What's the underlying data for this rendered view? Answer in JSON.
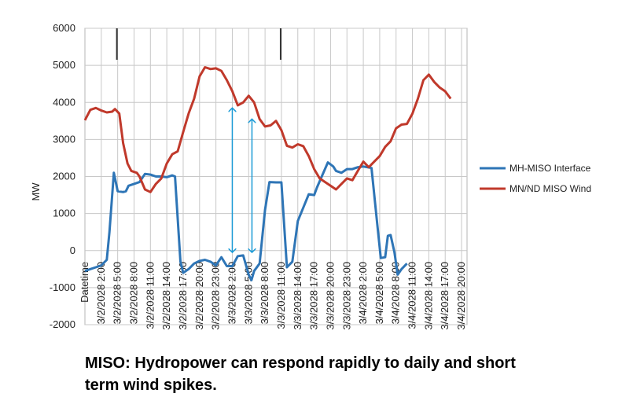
{
  "caption": "MISO: Hydropower can respond rapidly to daily and short term wind spikes.",
  "chart_data": {
    "type": "line",
    "title": "",
    "xlabel": "",
    "ylabel": "MW",
    "ylim": [
      -2000,
      6000
    ],
    "yticks": [
      "6000",
      "5000",
      "4000",
      "3000",
      "2000",
      "1000",
      "0",
      "-1000",
      "-2000"
    ],
    "grid": true,
    "legend": "right",
    "x_tick_labels": [
      "Datetime",
      "3/2/2028 2:00",
      "3/2/2028 5:00",
      "3/2/2028 8:00",
      "3/2/2028 11:00",
      "3/2/2028 14:00",
      "3/2/2028 17:00",
      "3/2/2028 20:00",
      "3/2/2028 23:00",
      "3/3/2028 2:00",
      "3/3/2028 5:00",
      "3/3/2028 8:00",
      "3/3/2028 11:00",
      "3/3/2028 14:00",
      "3/3/2028 17:00",
      "3/3/2028 20:00",
      "3/3/2028 23:00",
      "3/4/2028 2:00",
      "3/4/2028 5:00",
      "3/4/2028 8:00",
      "3/4/2028 11:00",
      "3/4/2028 14:00",
      "3/4/2028 17:00",
      "3/4/2028 20:00"
    ],
    "x_hours": [
      0,
      3,
      6,
      9,
      12,
      15,
      18,
      21,
      24,
      27,
      30,
      33,
      36,
      39,
      42,
      45,
      48,
      51,
      54,
      57,
      60,
      63,
      66,
      69
    ],
    "x_range_hours": [
      0,
      70
    ],
    "series": [
      {
        "name": "MH-MISO Interface",
        "color": "#2e75b6",
        "points": [
          [
            0,
            -550
          ],
          [
            1,
            -500
          ],
          [
            2,
            -450
          ],
          [
            3,
            -400
          ],
          [
            4,
            -250
          ],
          [
            4.5,
            500
          ],
          [
            5.3,
            2100
          ],
          [
            6,
            1600
          ],
          [
            7,
            1580
          ],
          [
            7.5,
            1600
          ],
          [
            8,
            1750
          ],
          [
            9,
            1800
          ],
          [
            10,
            1850
          ],
          [
            11,
            2070
          ],
          [
            12,
            2050
          ],
          [
            13,
            2000
          ],
          [
            14,
            2000
          ],
          [
            15,
            1980
          ],
          [
            16,
            2030
          ],
          [
            16.5,
            2000
          ],
          [
            17.5,
            -300
          ],
          [
            18,
            -600
          ],
          [
            19,
            -500
          ],
          [
            20,
            -350
          ],
          [
            21,
            -280
          ],
          [
            22,
            -250
          ],
          [
            23,
            -300
          ],
          [
            24,
            -400
          ],
          [
            25,
            -180
          ],
          [
            26,
            -420
          ],
          [
            27,
            -420
          ],
          [
            28,
            -150
          ],
          [
            29,
            -130
          ],
          [
            30,
            -650
          ],
          [
            30.5,
            -800
          ],
          [
            31,
            -550
          ],
          [
            32,
            -350
          ],
          [
            33,
            1100
          ],
          [
            33.8,
            1850
          ],
          [
            35,
            1840
          ],
          [
            36,
            1840
          ],
          [
            37,
            -450
          ],
          [
            38,
            -300
          ],
          [
            39,
            800
          ],
          [
            41,
            1520
          ],
          [
            42,
            1500
          ],
          [
            42.5,
            1700
          ],
          [
            44.5,
            2380
          ],
          [
            45.5,
            2270
          ],
          [
            46,
            2150
          ],
          [
            47,
            2100
          ],
          [
            48,
            2200
          ],
          [
            49,
            2200
          ],
          [
            50,
            2250
          ],
          [
            51,
            2270
          ],
          [
            52.5,
            2230
          ],
          [
            53.5,
            800
          ],
          [
            54.2,
            -200
          ],
          [
            55,
            -180
          ],
          [
            55.5,
            400
          ],
          [
            56,
            420
          ],
          [
            56.7,
            -50
          ],
          [
            57.3,
            -650
          ],
          [
            58,
            -500
          ],
          [
            59,
            -350
          ]
        ]
      },
      {
        "name": "MN/ND MISO Wind",
        "color": "#c0392b",
        "points": [
          [
            0,
            3520
          ],
          [
            1,
            3800
          ],
          [
            2,
            3850
          ],
          [
            3,
            3780
          ],
          [
            4,
            3730
          ],
          [
            5,
            3750
          ],
          [
            5.5,
            3820
          ],
          [
            6.3,
            3700
          ],
          [
            7,
            2900
          ],
          [
            7.8,
            2350
          ],
          [
            8.5,
            2150
          ],
          [
            9.5,
            2100
          ],
          [
            10,
            2000
          ],
          [
            11,
            1650
          ],
          [
            12,
            1580
          ],
          [
            13,
            1800
          ],
          [
            14,
            1950
          ],
          [
            15,
            2350
          ],
          [
            16,
            2600
          ],
          [
            17,
            2680
          ],
          [
            18,
            3200
          ],
          [
            19,
            3700
          ],
          [
            20,
            4100
          ],
          [
            21,
            4700
          ],
          [
            22,
            4950
          ],
          [
            23,
            4900
          ],
          [
            24,
            4920
          ],
          [
            25,
            4850
          ],
          [
            26,
            4600
          ],
          [
            27,
            4300
          ],
          [
            28,
            3920
          ],
          [
            29,
            4000
          ],
          [
            30,
            4180
          ],
          [
            31,
            4000
          ],
          [
            32,
            3550
          ],
          [
            33,
            3350
          ],
          [
            34,
            3380
          ],
          [
            35,
            3500
          ],
          [
            36,
            3250
          ],
          [
            37,
            2830
          ],
          [
            38,
            2780
          ],
          [
            39,
            2870
          ],
          [
            40,
            2820
          ],
          [
            41,
            2550
          ],
          [
            42,
            2200
          ],
          [
            43,
            1950
          ],
          [
            44,
            1850
          ],
          [
            45,
            1750
          ],
          [
            46,
            1650
          ],
          [
            47,
            1800
          ],
          [
            48,
            1950
          ],
          [
            49,
            1900
          ],
          [
            50,
            2150
          ],
          [
            51,
            2400
          ],
          [
            52,
            2250
          ],
          [
            53,
            2400
          ],
          [
            54,
            2550
          ],
          [
            55,
            2800
          ],
          [
            56,
            2950
          ],
          [
            57,
            3300
          ],
          [
            58,
            3400
          ],
          [
            59,
            3420
          ],
          [
            60,
            3700
          ],
          [
            61,
            4100
          ],
          [
            62,
            4600
          ],
          [
            63,
            4750
          ],
          [
            64,
            4550
          ],
          [
            65,
            4400
          ],
          [
            66,
            4300
          ],
          [
            67,
            4100
          ]
        ]
      }
    ],
    "annotations": [
      {
        "type": "double-arrow",
        "x_hours": 27,
        "y_from": -50,
        "y_to": 3850,
        "color": "#1a9ad6"
      },
      {
        "type": "double-arrow",
        "x_hours": 30.6,
        "y_from": -50,
        "y_to": 3550,
        "color": "#1a9ad6"
      }
    ]
  }
}
